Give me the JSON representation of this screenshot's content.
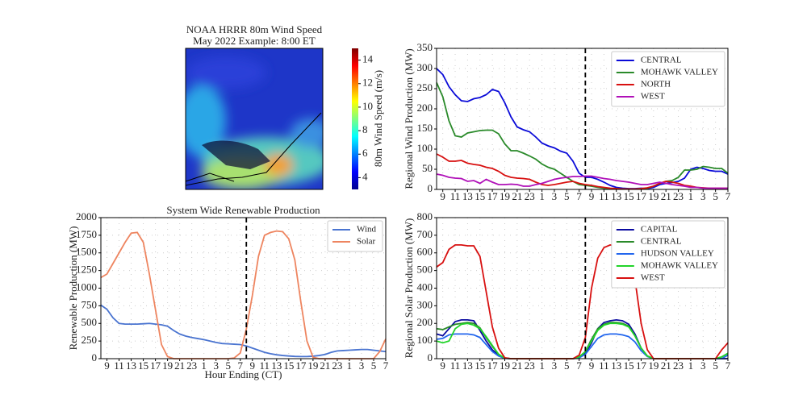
{
  "chart_data": [
    {
      "type": "map",
      "title": "NOAA HRRR 80m Wind Speed",
      "subtitle": "May 2022 Example: 8:00 ET",
      "colorbar": {
        "label": "80m Wind Speed (m/s)",
        "lim": [
          3,
          15
        ],
        "ticks": [
          4,
          6,
          8,
          10,
          12,
          14
        ]
      }
    },
    {
      "type": "line",
      "ylabel": "Regional Wind Production (MW)",
      "ylim": [
        0,
        350
      ],
      "yticks": [
        0,
        50,
        100,
        150,
        200,
        250,
        300,
        350
      ],
      "grid": true,
      "legend": "upper right",
      "vline": 24,
      "categories": [
        null,
        "9",
        null,
        "11",
        null,
        "13",
        null,
        "15",
        null,
        "17",
        null,
        "19",
        null,
        "21",
        null,
        "23",
        null,
        "1",
        null,
        "3",
        null,
        "5",
        null,
        "7",
        null,
        "9",
        null,
        "11",
        null,
        "13",
        null,
        "15",
        null,
        "17",
        null,
        "19",
        null,
        "21",
        null,
        "23",
        null,
        "1",
        null,
        "3",
        null,
        "5",
        null,
        "7"
      ],
      "series": [
        {
          "name": "CENTRAL",
          "color": "#0a0ad8",
          "values": [
            300,
            285,
            255,
            235,
            220,
            218,
            225,
            228,
            235,
            248,
            243,
            215,
            180,
            155,
            148,
            143,
            130,
            115,
            108,
            103,
            95,
            90,
            70,
            40,
            30,
            30,
            25,
            18,
            10,
            5,
            3,
            2,
            2,
            3,
            2,
            5,
            12,
            15,
            17,
            20,
            28,
            50,
            55,
            52,
            47,
            45,
            45,
            38
          ]
        },
        {
          "name": "MOHAWK VALLEY",
          "color": "#2a8a2a",
          "values": [
            265,
            230,
            170,
            133,
            130,
            140,
            143,
            146,
            147,
            147,
            138,
            113,
            96,
            96,
            90,
            83,
            75,
            63,
            55,
            50,
            40,
            30,
            20,
            12,
            10,
            8,
            5,
            3,
            2,
            2,
            1,
            1,
            1,
            2,
            3,
            8,
            15,
            20,
            22,
            30,
            48,
            48,
            50,
            57,
            55,
            52,
            52,
            40
          ]
        },
        {
          "name": "NORTH",
          "color": "#d81010",
          "values": [
            88,
            80,
            70,
            70,
            72,
            65,
            62,
            60,
            55,
            52,
            45,
            35,
            30,
            28,
            27,
            25,
            18,
            12,
            10,
            12,
            15,
            18,
            20,
            15,
            12,
            10,
            7,
            5,
            3,
            2,
            1,
            1,
            1,
            2,
            4,
            8,
            15,
            20,
            18,
            15,
            10,
            8,
            5,
            4,
            3,
            3,
            3,
            3
          ]
        },
        {
          "name": "WEST",
          "color": "#b010b8",
          "values": [
            38,
            35,
            30,
            28,
            27,
            20,
            22,
            15,
            25,
            18,
            12,
            12,
            13,
            12,
            8,
            8,
            12,
            15,
            20,
            25,
            28,
            30,
            32,
            32,
            33,
            33,
            30,
            27,
            25,
            22,
            20,
            18,
            15,
            12,
            12,
            15,
            18,
            15,
            12,
            10,
            8,
            5,
            5,
            3,
            3,
            3,
            3,
            3
          ]
        }
      ]
    },
    {
      "type": "line",
      "title": "System Wide Renewable Production",
      "xlabel": "Hour Ending (CT)",
      "ylabel": "Renewable Production (MW)",
      "ylim": [
        0,
        2000
      ],
      "yticks": [
        0,
        250,
        500,
        750,
        1000,
        1250,
        1500,
        1750,
        2000
      ],
      "grid": true,
      "legend": "upper right",
      "vline": 24,
      "categories": [
        null,
        "9",
        null,
        "11",
        null,
        "13",
        null,
        "15",
        null,
        "17",
        null,
        "19",
        null,
        "21",
        null,
        "23",
        null,
        "1",
        null,
        "3",
        null,
        "5",
        null,
        "7",
        null,
        "9",
        null,
        "11",
        null,
        "13",
        null,
        "15",
        null,
        "17",
        null,
        "19",
        null,
        "21",
        null,
        "23",
        null,
        "1",
        null,
        "3",
        null,
        "5",
        null,
        "7"
      ],
      "series": [
        {
          "name": "Wind",
          "color": "#4a74d0",
          "values": [
            760,
            700,
            580,
            500,
            490,
            490,
            490,
            495,
            500,
            490,
            480,
            460,
            400,
            350,
            320,
            300,
            285,
            270,
            250,
            230,
            215,
            210,
            205,
            200,
            180,
            150,
            120,
            90,
            70,
            55,
            45,
            38,
            32,
            30,
            30,
            35,
            45,
            60,
            90,
            110,
            115,
            120,
            125,
            130,
            130,
            120,
            110,
            100
          ]
        },
        {
          "name": "Solar",
          "color": "#ee8560",
          "values": [
            1150,
            1200,
            1350,
            1500,
            1650,
            1780,
            1790,
            1650,
            1200,
            700,
            200,
            30,
            0,
            0,
            0,
            0,
            0,
            0,
            0,
            0,
            0,
            0,
            10,
            80,
            420,
            900,
            1450,
            1750,
            1790,
            1810,
            1800,
            1700,
            1400,
            800,
            250,
            20,
            0,
            0,
            0,
            0,
            0,
            0,
            0,
            0,
            0,
            0,
            100,
            280
          ]
        }
      ]
    },
    {
      "type": "line",
      "ylabel": "Regional Solar Production (MW)",
      "ylim": [
        0,
        800
      ],
      "yticks": [
        0,
        100,
        200,
        300,
        400,
        500,
        600,
        700,
        800
      ],
      "grid": true,
      "legend": "upper right",
      "vline": 24,
      "categories": [
        null,
        "9",
        null,
        "11",
        null,
        "13",
        null,
        "15",
        null,
        "17",
        null,
        "19",
        null,
        "21",
        null,
        "23",
        null,
        "1",
        null,
        "3",
        null,
        "5",
        null,
        "7",
        null,
        "9",
        null,
        "11",
        null,
        "13",
        null,
        "15",
        null,
        "17",
        null,
        "19",
        null,
        "21",
        null,
        "23",
        null,
        "1",
        null,
        "3",
        null,
        "5",
        null,
        "7"
      ],
      "series": [
        {
          "name": "CAPITAL",
          "color": "#0a0aa0",
          "values": [
            140,
            130,
            170,
            210,
            220,
            220,
            215,
            160,
            100,
            50,
            20,
            3,
            0,
            0,
            0,
            0,
            0,
            0,
            0,
            0,
            0,
            0,
            0,
            5,
            30,
            90,
            170,
            205,
            215,
            220,
            215,
            195,
            140,
            60,
            15,
            0,
            0,
            0,
            0,
            0,
            0,
            0,
            0,
            0,
            0,
            0,
            0,
            0
          ]
        },
        {
          "name": "CENTRAL",
          "color": "#2a8a2a",
          "values": [
            170,
            165,
            180,
            195,
            200,
            205,
            200,
            175,
            120,
            70,
            25,
            3,
            0,
            0,
            0,
            0,
            0,
            0,
            0,
            0,
            0,
            0,
            0,
            10,
            40,
            110,
            170,
            195,
            205,
            205,
            200,
            185,
            130,
            60,
            15,
            0,
            0,
            0,
            0,
            0,
            0,
            0,
            0,
            0,
            0,
            0,
            10,
            30
          ]
        },
        {
          "name": "HUDSON VALLEY",
          "color": "#2266ee",
          "values": [
            110,
            115,
            135,
            140,
            140,
            140,
            135,
            120,
            80,
            40,
            15,
            2,
            0,
            0,
            0,
            0,
            0,
            0,
            0,
            0,
            0,
            0,
            0,
            5,
            25,
            70,
            115,
            135,
            140,
            140,
            135,
            125,
            95,
            45,
            12,
            0,
            0,
            0,
            0,
            0,
            0,
            0,
            0,
            0,
            0,
            0,
            0,
            20
          ]
        },
        {
          "name": "MOHAWK VALLEY",
          "color": "#22d42a",
          "values": [
            100,
            90,
            100,
            170,
            195,
            200,
            190,
            170,
            125,
            75,
            25,
            3,
            0,
            0,
            0,
            0,
            0,
            0,
            0,
            0,
            0,
            0,
            0,
            10,
            40,
            100,
            160,
            190,
            200,
            200,
            195,
            180,
            130,
            60,
            15,
            0,
            0,
            0,
            0,
            0,
            0,
            0,
            0,
            0,
            0,
            0,
            10,
            30
          ]
        },
        {
          "name": "WEST",
          "color": "#d81010",
          "values": [
            520,
            545,
            620,
            645,
            645,
            640,
            640,
            580,
            380,
            180,
            60,
            5,
            0,
            0,
            0,
            0,
            0,
            0,
            0,
            0,
            0,
            0,
            0,
            20,
            120,
            400,
            570,
            630,
            645,
            640,
            610,
            550,
            450,
            200,
            50,
            0,
            0,
            0,
            0,
            0,
            0,
            0,
            0,
            0,
            0,
            0,
            50,
            90
          ]
        }
      ]
    }
  ]
}
